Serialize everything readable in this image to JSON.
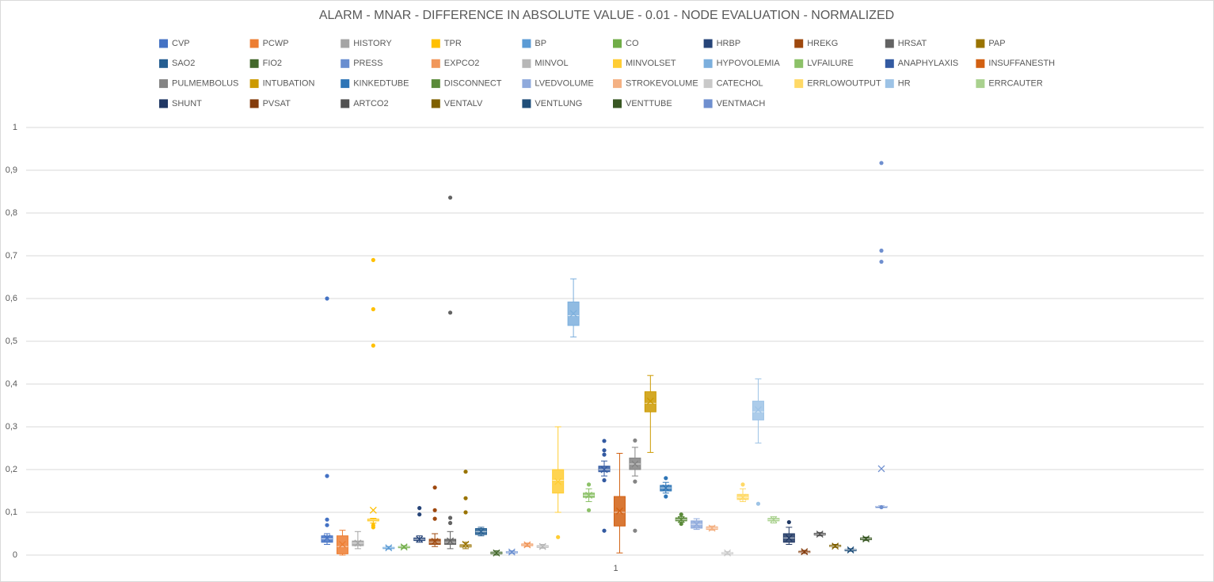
{
  "chart_data": {
    "type": "box",
    "title": "ALARM - MNAR - DIFFERENCE IN ABSOLUTE VALUE - 0.01 - NODE EVALUATION - NORMALIZED",
    "categories": [
      "1"
    ],
    "ylim": [
      0,
      1
    ],
    "yticks": [
      0,
      {
        "value": 0.1,
        "label": "0,1"
      },
      {
        "value": 0.2,
        "label": "0,2"
      },
      {
        "value": 0.3,
        "label": "0,3"
      },
      {
        "value": 0.4,
        "label": "0,4"
      },
      {
        "value": 0.5,
        "label": "0,5"
      },
      {
        "value": 0.6,
        "label": "0,6"
      },
      {
        "value": 0.7,
        "label": "0,7"
      },
      {
        "value": 0.8,
        "label": "0,8"
      },
      {
        "value": 0.9,
        "label": "0,9"
      },
      1
    ],
    "grid": true,
    "legend": "top",
    "series": [
      {
        "name": "CVP",
        "color": "#4472c4",
        "min": 0.025,
        "q1": 0.03,
        "median": 0.038,
        "q3": 0.045,
        "max": 0.05,
        "mean": 0.04,
        "outliers": [
          0.6,
          0.185,
          0.083,
          0.07
        ]
      },
      {
        "name": "PCWP",
        "color": "#ed7d31",
        "min": 0,
        "q1": 0.003,
        "median": 0.02,
        "q3": 0.045,
        "max": 0.058,
        "mean": 0.025,
        "outliers": []
      },
      {
        "name": "HISTORY",
        "color": "#a5a5a5",
        "min": 0.015,
        "q1": 0.022,
        "median": 0.028,
        "q3": 0.033,
        "max": 0.055,
        "mean": 0.028,
        "outliers": []
      },
      {
        "name": "TPR",
        "color": "#ffc000",
        "min": 0.075,
        "q1": 0.08,
        "median": 0.082,
        "q3": 0.084,
        "max": 0.086,
        "mean": 0.105,
        "outliers": [
          0.69,
          0.575,
          0.49,
          0.065,
          0.07
        ]
      },
      {
        "name": "BP",
        "color": "#5b9bd5",
        "min": 0.014,
        "q1": 0.016,
        "median": 0.017,
        "q3": 0.018,
        "max": 0.02,
        "mean": 0.017,
        "outliers": []
      },
      {
        "name": "CO",
        "color": "#70ad47",
        "min": 0.016,
        "q1": 0.018,
        "median": 0.019,
        "q3": 0.02,
        "max": 0.022,
        "mean": 0.019,
        "outliers": []
      },
      {
        "name": "HRBP",
        "color": "#264478",
        "min": 0.03,
        "q1": 0.034,
        "median": 0.037,
        "q3": 0.04,
        "max": 0.045,
        "mean": 0.037,
        "outliers": [
          0.11,
          0.095
        ]
      },
      {
        "name": "HREKG",
        "color": "#9e480e",
        "min": 0.02,
        "q1": 0.025,
        "median": 0.03,
        "q3": 0.037,
        "max": 0.05,
        "mean": 0.032,
        "outliers": [
          0.158,
          0.105,
          0.085
        ]
      },
      {
        "name": "HRSAT",
        "color": "#636363",
        "min": 0.015,
        "q1": 0.025,
        "median": 0.03,
        "q3": 0.037,
        "max": 0.055,
        "mean": 0.033,
        "outliers": [
          0.836,
          0.567,
          0.087,
          0.075
        ]
      },
      {
        "name": "PAP",
        "color": "#997300",
        "min": 0.015,
        "q1": 0.019,
        "median": 0.021,
        "q3": 0.024,
        "max": 0.03,
        "mean": 0.025,
        "outliers": [
          0.195,
          0.133,
          0.1
        ]
      },
      {
        "name": "SAO2",
        "color": "#255e91",
        "min": 0.045,
        "q1": 0.048,
        "median": 0.055,
        "q3": 0.062,
        "max": 0.065,
        "mean": 0.055,
        "outliers": []
      },
      {
        "name": "FIO2",
        "color": "#43682b",
        "min": 0,
        "q1": 0.003,
        "median": 0.005,
        "q3": 0.007,
        "max": 0.01,
        "mean": 0.005,
        "outliers": []
      },
      {
        "name": "PRESS",
        "color": "#698ed0",
        "min": 0.004,
        "q1": 0.006,
        "median": 0.007,
        "q3": 0.008,
        "max": 0.01,
        "mean": 0.007,
        "outliers": []
      },
      {
        "name": "EXPCO2",
        "color": "#f1975a",
        "min": 0.02,
        "q1": 0.022,
        "median": 0.024,
        "q3": 0.026,
        "max": 0.028,
        "mean": 0.024,
        "outliers": []
      },
      {
        "name": "MINVOL",
        "color": "#b7b7b7",
        "min": 0.016,
        "q1": 0.018,
        "median": 0.02,
        "q3": 0.022,
        "max": 0.025,
        "mean": 0.02,
        "outliers": []
      },
      {
        "name": "MINVOLSET",
        "color": "#ffcd33",
        "min": 0.1,
        "q1": 0.145,
        "median": 0.175,
        "q3": 0.2,
        "max": 0.3,
        "mean": 0.172,
        "outliers": [
          0.042
        ]
      },
      {
        "name": "HYPOVOLEMIA",
        "color": "#7cafdd",
        "min": 0.51,
        "q1": 0.537,
        "median": 0.56,
        "q3": 0.592,
        "max": 0.646,
        "mean": 0.565,
        "outliers": []
      },
      {
        "name": "LVFAILURE",
        "color": "#8cc168",
        "min": 0.125,
        "q1": 0.135,
        "median": 0.14,
        "q3": 0.145,
        "max": 0.155,
        "mean": 0.14,
        "outliers": [
          0.165,
          0.105
        ]
      },
      {
        "name": "ANAPHYLAXIS",
        "color": "#335aa1",
        "min": 0.185,
        "q1": 0.195,
        "median": 0.2,
        "q3": 0.208,
        "max": 0.22,
        "mean": 0.2,
        "outliers": [
          0.267,
          0.245,
          0.235,
          0.175,
          0.057
        ]
      },
      {
        "name": "INSUFFANESTH",
        "color": "#d26012",
        "min": 0.005,
        "q1": 0.068,
        "median": 0.1,
        "q3": 0.137,
        "max": 0.238,
        "mean": 0.103,
        "outliers": []
      },
      {
        "name": "PULMEMBOLUS",
        "color": "#848484",
        "min": 0.185,
        "q1": 0.2,
        "median": 0.213,
        "q3": 0.227,
        "max": 0.252,
        "mean": 0.213,
        "outliers": [
          0.268,
          0.172,
          0.057
        ]
      },
      {
        "name": "INTUBATION",
        "color": "#cc9a00",
        "min": 0.24,
        "q1": 0.335,
        "median": 0.355,
        "q3": 0.382,
        "max": 0.42,
        "mean": 0.36,
        "outliers": []
      },
      {
        "name": "KINKEDTUBE",
        "color": "#2e75b6",
        "min": 0.145,
        "q1": 0.15,
        "median": 0.157,
        "q3": 0.163,
        "max": 0.17,
        "mean": 0.157,
        "outliers": [
          0.18,
          0.137
        ]
      },
      {
        "name": "DISCONNECT",
        "color": "#5a8a39",
        "min": 0.077,
        "q1": 0.08,
        "median": 0.083,
        "q3": 0.087,
        "max": 0.09,
        "mean": 0.083,
        "outliers": [
          0.095,
          0.073
        ]
      },
      {
        "name": "LVEDVOLUME",
        "color": "#8faadc",
        "min": 0.06,
        "q1": 0.063,
        "median": 0.072,
        "q3": 0.08,
        "max": 0.085,
        "mean": 0.072,
        "outliers": []
      },
      {
        "name": "STROKEVOLUME",
        "color": "#f4b183",
        "min": 0.058,
        "q1": 0.06,
        "median": 0.063,
        "q3": 0.066,
        "max": 0.068,
        "mean": 0.063,
        "outliers": []
      },
      {
        "name": "CATECHOL",
        "color": "#c9c9c9",
        "min": 0.002,
        "q1": 0.003,
        "median": 0.005,
        "q3": 0.006,
        "max": 0.008,
        "mean": 0.005,
        "outliers": []
      },
      {
        "name": "ERRLOWOUTPUT",
        "color": "#ffd966",
        "min": 0.125,
        "q1": 0.13,
        "median": 0.135,
        "q3": 0.142,
        "max": 0.155,
        "mean": 0.135,
        "outliers": [
          0.165
        ]
      },
      {
        "name": "HR",
        "color": "#9dc3e6",
        "min": 0.262,
        "q1": 0.316,
        "median": 0.335,
        "q3": 0.36,
        "max": 0.412,
        "mean": 0.34,
        "outliers": [
          0.12
        ]
      },
      {
        "name": "ERRCAUTER",
        "color": "#a9d18e",
        "min": 0.075,
        "q1": 0.08,
        "median": 0.083,
        "q3": 0.086,
        "max": 0.09,
        "mean": 0.083,
        "outliers": []
      },
      {
        "name": "SHUNT",
        "color": "#203864",
        "min": 0.025,
        "q1": 0.03,
        "median": 0.04,
        "q3": 0.05,
        "max": 0.065,
        "mean": 0.04,
        "outliers": [
          0.077
        ]
      },
      {
        "name": "PVSAT",
        "color": "#843c0c",
        "min": 0.004,
        "q1": 0.006,
        "median": 0.007,
        "q3": 0.009,
        "max": 0.011,
        "mean": 0.008,
        "outliers": []
      },
      {
        "name": "ARTCO2",
        "color": "#525252",
        "min": 0.045,
        "q1": 0.047,
        "median": 0.049,
        "q3": 0.051,
        "max": 0.053,
        "mean": 0.049,
        "outliers": []
      },
      {
        "name": "VENTALV",
        "color": "#7f6000",
        "min": 0.018,
        "q1": 0.02,
        "median": 0.021,
        "q3": 0.023,
        "max": 0.025,
        "mean": 0.021,
        "outliers": []
      },
      {
        "name": "VENTLUNG",
        "color": "#1f4e79",
        "min": 0.009,
        "q1": 0.01,
        "median": 0.012,
        "q3": 0.013,
        "max": 0.015,
        "mean": 0.012,
        "outliers": []
      },
      {
        "name": "VENTTUBE",
        "color": "#385723",
        "min": 0.034,
        "q1": 0.036,
        "median": 0.038,
        "q3": 0.04,
        "max": 0.042,
        "mean": 0.038,
        "outliers": []
      },
      {
        "name": "VENTMACH",
        "color": "#6f8fcf",
        "min": 0.113,
        "q1": 0.113,
        "median": 0.114,
        "q3": 0.114,
        "max": 0.115,
        "mean": 0.202,
        "outliers": [
          0.917,
          0.712,
          0.686,
          0.112
        ]
      }
    ]
  }
}
